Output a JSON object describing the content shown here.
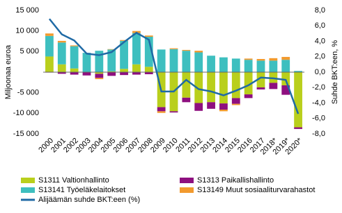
{
  "chart_data": {
    "type": "bar-line",
    "y_label": "Miljoonaa euroa",
    "y2_label": "Suhde BKT:een, %",
    "categories": [
      "2000",
      "2001",
      "2002",
      "2003",
      "2004",
      "2005",
      "2006",
      "2007",
      "2008",
      "2009",
      "2010",
      "2011",
      "2012",
      "2013",
      "2014",
      "2015",
      "2016",
      "2017",
      "2018*",
      "2019*",
      "2020*"
    ],
    "series": [
      {
        "name": "S1311 Valtionhallinto",
        "color": "#b9cf1c",
        "values": [
          3800,
          1900,
          900,
          0,
          -400,
          200,
          800,
          1900,
          1300,
          -8500,
          -9500,
          -6200,
          -7500,
          -7300,
          -7600,
          -6300,
          -5400,
          -3700,
          -2600,
          -3200,
          -13400
        ]
      },
      {
        "name": "S1313 Paikallishallinto",
        "color": "#8e0f7f",
        "values": [
          -100,
          -400,
          -600,
          -800,
          -1000,
          -900,
          -700,
          -600,
          -500,
          -1000,
          -300,
          -1100,
          -1900,
          -1600,
          -1500,
          -1400,
          -900,
          -500,
          -1500,
          -2300,
          -400
        ]
      },
      {
        "name": "S13141 Työeläkelaitokset",
        "color": "#3ebfbf",
        "values": [
          5000,
          5300,
          5400,
          4700,
          5200,
          5300,
          6800,
          7600,
          7300,
          5500,
          5600,
          5200,
          4800,
          4000,
          3600,
          3300,
          3000,
          2800,
          2800,
          3000,
          300
        ]
      },
      {
        "name": "S13149  Muut sosiaaliturvarahastot",
        "color": "#f29a2e",
        "values": [
          600,
          400,
          200,
          0,
          -300,
          100,
          200,
          500,
          300,
          -400,
          200,
          200,
          400,
          0,
          -400,
          -300,
          300,
          400,
          600,
          700,
          0
        ]
      },
      {
        "name": "Alijäämän suhde BKT:een (%)",
        "color": "#1f6aa5",
        "type": "line",
        "axis": "y2",
        "values": [
          6.9,
          4.9,
          4.1,
          2.4,
          2.2,
          2.6,
          3.9,
          5.1,
          4.2,
          -2.5,
          -2.5,
          -1.0,
          -2.2,
          -2.5,
          -3.0,
          -2.4,
          -1.7,
          -0.7,
          -0.8,
          -1.0,
          -5.4
        ]
      }
    ],
    "ylim": [
      -15000,
      15000
    ],
    "yticks": [
      {
        "value": -15000,
        "label": "-15 000"
      },
      {
        "value": -10000,
        "label": "-10 000"
      },
      {
        "value": -5000,
        "label": "-5 000"
      },
      {
        "value": 5000,
        "label": "5 000"
      },
      {
        "value": 10000,
        "label": "10 000"
      },
      {
        "value": 15000,
        "label": "15 000"
      }
    ],
    "y2lim": [
      -8,
      8
    ],
    "y2ticks": [
      {
        "value": -8,
        "label": "-8,0"
      },
      {
        "value": -6,
        "label": "-6,0"
      },
      {
        "value": -4,
        "label": "-4,0"
      },
      {
        "value": -2,
        "label": "-2,0"
      },
      {
        "value": 0,
        "label": "0,0"
      },
      {
        "value": 2,
        "label": "2,0"
      },
      {
        "value": 4,
        "label": "4,0"
      },
      {
        "value": 6,
        "label": "6,0"
      },
      {
        "value": 8,
        "label": "8,0"
      }
    ]
  }
}
